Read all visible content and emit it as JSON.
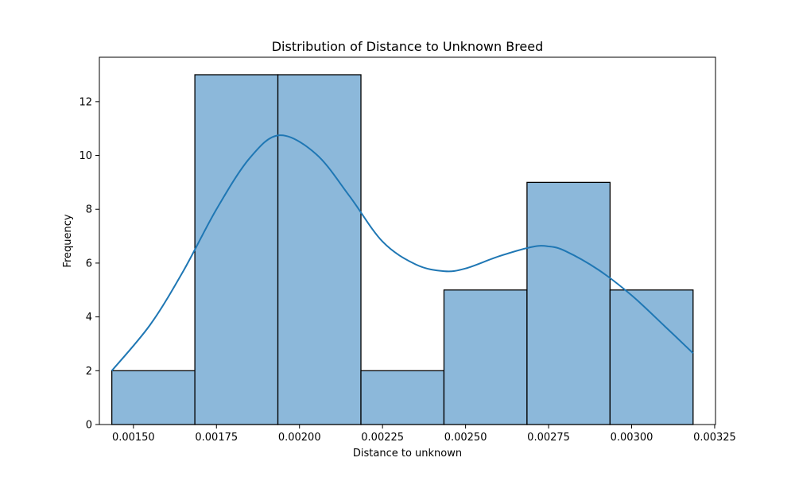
{
  "chart_data": {
    "type": "bar",
    "title": "Distribution of Distance to Unknown Breed",
    "xlabel": "Distance to unknown",
    "ylabel": "Frequency",
    "xlim": [
      0.0013975,
      0.0032525
    ],
    "ylim": [
      0,
      13.65
    ],
    "x_ticks": [
      0.0015,
      0.00175,
      0.002,
      0.00225,
      0.0025,
      0.00275,
      0.003,
      0.00325
    ],
    "x_tick_labels": [
      "0.00150",
      "0.00175",
      "0.00200",
      "0.00225",
      "0.00250",
      "0.00275",
      "0.00300",
      "0.00325"
    ],
    "y_ticks": [
      0,
      2,
      4,
      6,
      8,
      10,
      12
    ],
    "y_tick_labels": [
      "0",
      "2",
      "4",
      "6",
      "8",
      "10",
      "12"
    ],
    "bin_edges": [
      0.001435,
      0.001685,
      0.001935,
      0.002185,
      0.002435,
      0.002685,
      0.002935,
      0.003185
    ],
    "values": [
      2,
      13,
      13,
      2,
      5,
      9,
      5
    ],
    "kde": {
      "x": [
        0.001435,
        0.00155,
        0.00165,
        0.00175,
        0.00185,
        0.00194,
        0.00205,
        0.00215,
        0.00225,
        0.00235,
        0.002435,
        0.0025,
        0.0026,
        0.0027,
        0.00275,
        0.0028,
        0.0029,
        0.003,
        0.0031,
        0.003185
      ],
      "y": [
        2.0,
        3.7,
        5.7,
        8.0,
        9.9,
        10.75,
        10.05,
        8.5,
        6.8,
        5.95,
        5.7,
        5.8,
        6.25,
        6.6,
        6.62,
        6.45,
        5.75,
        4.8,
        3.65,
        2.65
      ]
    },
    "colors": {
      "bar_fill": "#8cb8da",
      "bar_edge": "#000000",
      "kde_line": "#1f77b4"
    },
    "grid": false,
    "legend": "none"
  }
}
